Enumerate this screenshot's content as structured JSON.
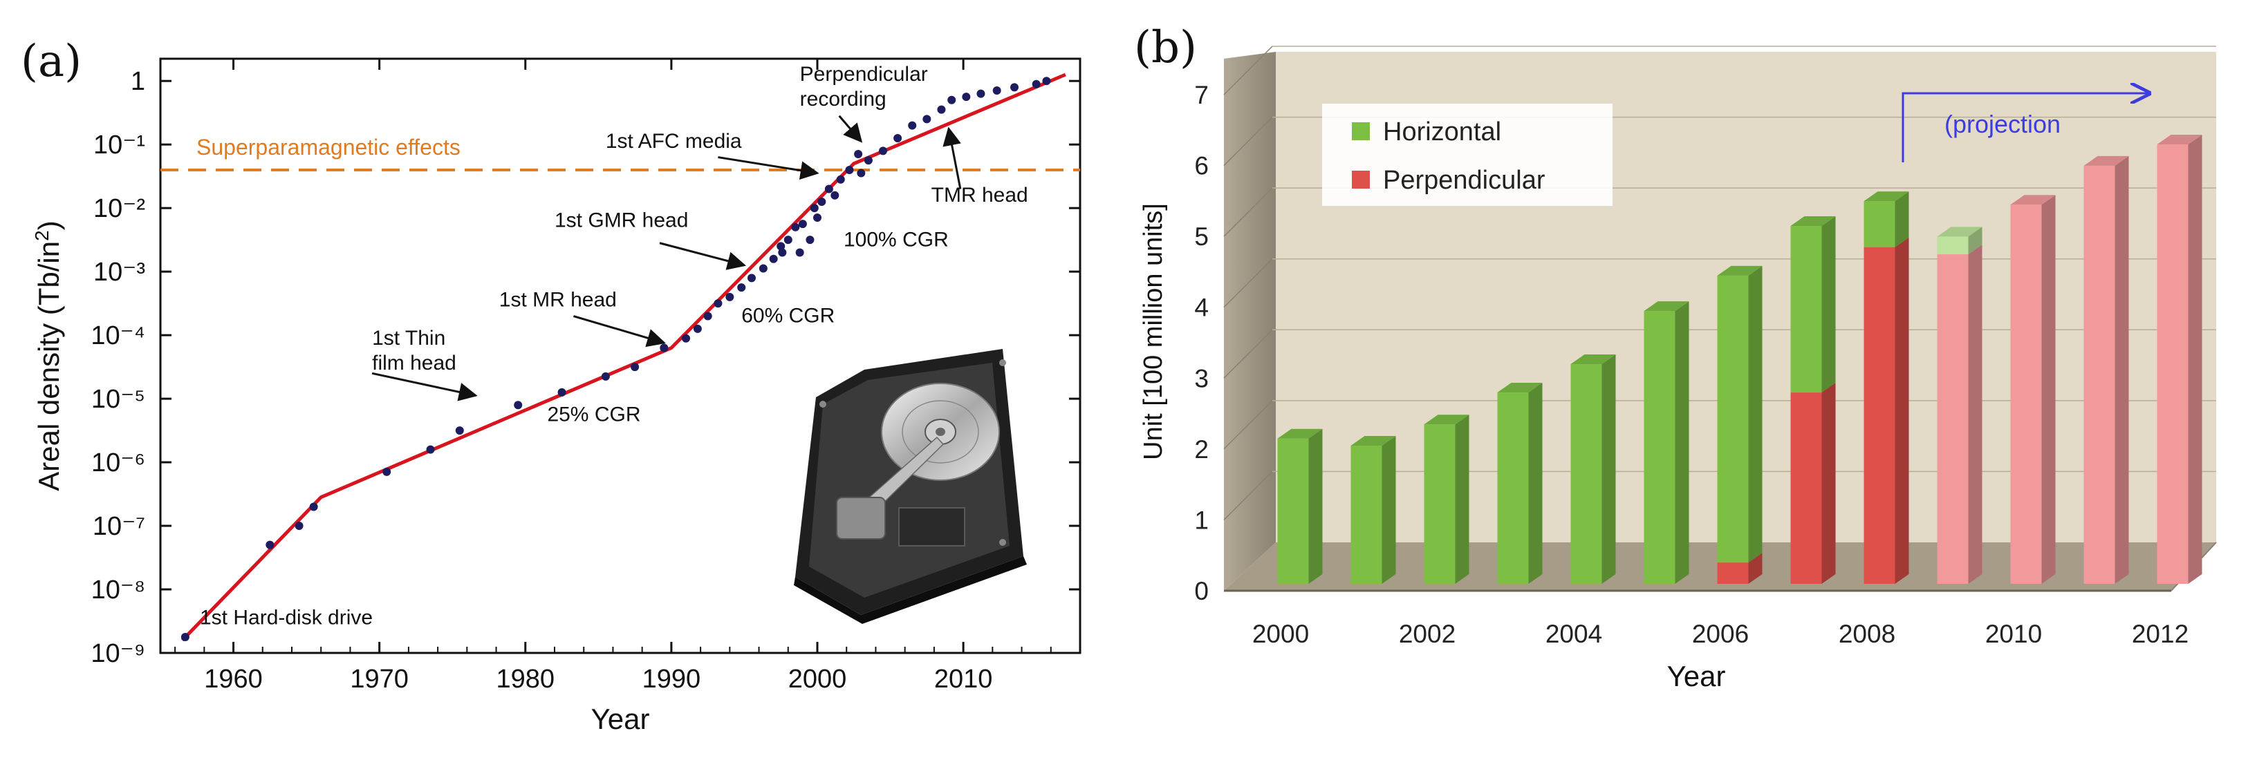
{
  "chart_data": [
    {
      "panel_label": "(a)",
      "type": "scatter",
      "title": "",
      "xlabel": "Year",
      "ylabel": "Areal density (Tb/in²)",
      "yscale": "log",
      "xlim": [
        1955,
        2018
      ],
      "ylim_exp": [
        -9,
        0.35
      ],
      "xticks": [
        1960,
        1970,
        1980,
        1990,
        2000,
        2010
      ],
      "yticks": [
        {
          "exp": 0,
          "label": "1"
        },
        {
          "exp": -1,
          "label": "10⁻¹"
        },
        {
          "exp": -2,
          "label": "10⁻²"
        },
        {
          "exp": -3,
          "label": "10⁻³"
        },
        {
          "exp": -4,
          "label": "10⁻⁴"
        },
        {
          "exp": -5,
          "label": "10⁻⁵"
        },
        {
          "exp": -6,
          "label": "10⁻⁶"
        },
        {
          "exp": -7,
          "label": "10⁻⁷"
        },
        {
          "exp": -8,
          "label": "10⁻⁸"
        },
        {
          "exp": -9,
          "label": "10⁻⁹"
        }
      ],
      "threshold": {
        "label": "Superparamagnetic effects",
        "value_exp": -1.4,
        "color": "#e07b22"
      },
      "trend_color": "#d8141e",
      "point_color": "#1c1c5e",
      "trend": [
        {
          "x": 1956.5,
          "y_exp": -8.8
        },
        {
          "x": 1966,
          "y_exp": -6.55
        },
        {
          "x": 1990,
          "y_exp": -4.2
        },
        {
          "x": 2002.5,
          "y_exp": -1.3
        },
        {
          "x": 2017,
          "y_exp": 0.1
        }
      ],
      "points": [
        {
          "x": 1956.7,
          "y_exp": -8.75
        },
        {
          "x": 1962.5,
          "y_exp": -7.3
        },
        {
          "x": 1964.5,
          "y_exp": -7.0
        },
        {
          "x": 1965.5,
          "y_exp": -6.7
        },
        {
          "x": 1970.5,
          "y_exp": -6.15
        },
        {
          "x": 1973.5,
          "y_exp": -5.8
        },
        {
          "x": 1975.5,
          "y_exp": -5.5
        },
        {
          "x": 1979.5,
          "y_exp": -5.1
        },
        {
          "x": 1982.5,
          "y_exp": -4.9
        },
        {
          "x": 1985.5,
          "y_exp": -4.65
        },
        {
          "x": 1987.5,
          "y_exp": -4.5
        },
        {
          "x": 1989.5,
          "y_exp": -4.2
        },
        {
          "x": 1991,
          "y_exp": -4.05
        },
        {
          "x": 1991.8,
          "y_exp": -3.9
        },
        {
          "x": 1992.5,
          "y_exp": -3.7
        },
        {
          "x": 1993.2,
          "y_exp": -3.5
        },
        {
          "x": 1994,
          "y_exp": -3.4
        },
        {
          "x": 1994.8,
          "y_exp": -3.25
        },
        {
          "x": 1995.5,
          "y_exp": -3.1
        },
        {
          "x": 1996.3,
          "y_exp": -2.95
        },
        {
          "x": 1997,
          "y_exp": -2.8
        },
        {
          "x": 1997.5,
          "y_exp": -2.6
        },
        {
          "x": 1998,
          "y_exp": -2.5
        },
        {
          "x": 1998.5,
          "y_exp": -2.3
        },
        {
          "x": 1999,
          "y_exp": -2.25
        },
        {
          "x": 1999.5,
          "y_exp": -2.5
        },
        {
          "x": 1999.8,
          "y_exp": -2.0
        },
        {
          "x": 2000.3,
          "y_exp": -1.9
        },
        {
          "x": 2000.8,
          "y_exp": -1.7
        },
        {
          "x": 2001.2,
          "y_exp": -1.8
        },
        {
          "x": 2001.6,
          "y_exp": -1.55
        },
        {
          "x": 2002.2,
          "y_exp": -1.4
        },
        {
          "x": 2002.8,
          "y_exp": -1.15
        },
        {
          "x": 2003.5,
          "y_exp": -1.25
        },
        {
          "x": 2004.5,
          "y_exp": -1.1
        },
        {
          "x": 2005.5,
          "y_exp": -0.9
        },
        {
          "x": 2006.5,
          "y_exp": -0.7
        },
        {
          "x": 2007.5,
          "y_exp": -0.6
        },
        {
          "x": 2008.5,
          "y_exp": -0.45
        },
        {
          "x": 2009.2,
          "y_exp": -0.3
        },
        {
          "x": 2010.2,
          "y_exp": -0.25
        },
        {
          "x": 2011.2,
          "y_exp": -0.2
        },
        {
          "x": 2012.3,
          "y_exp": -0.15
        },
        {
          "x": 2013.5,
          "y_exp": -0.1
        },
        {
          "x": 2015,
          "y_exp": -0.05
        },
        {
          "x": 2015.7,
          "y_exp": 0.0
        },
        {
          "x": 1997.6,
          "y_exp": -2.7
        },
        {
          "x": 1998.8,
          "y_exp": -2.7
        },
        {
          "x": 2000.0,
          "y_exp": -2.15
        },
        {
          "x": 2003.0,
          "y_exp": -1.45
        }
      ],
      "annotations": [
        {
          "text": [
            "1st Hard-disk drive"
          ],
          "x": 1957.7,
          "y_exp": -8.55
        },
        {
          "text": [
            "1st Thin",
            "film head"
          ],
          "x": 1969.5,
          "y_exp": -4.15
        },
        {
          "text": [
            "1st MR head"
          ],
          "x": 1978.2,
          "y_exp": -3.55
        },
        {
          "text": [
            "1st GMR head"
          ],
          "x": 1982.0,
          "y_exp": -2.3
        },
        {
          "text": [
            "1st AFC media"
          ],
          "x": 1985.5,
          "y_exp": -1.05
        },
        {
          "text": [
            "Perpendicular",
            "recording"
          ],
          "x": 1998.8,
          "y_exp": 0.0
        },
        {
          "text": [
            "TMR head"
          ],
          "x": 2007.8,
          "y_exp": -1.9
        },
        {
          "text": [
            "25% CGR"
          ],
          "x": 1981.5,
          "y_exp": -5.35
        },
        {
          "text": [
            "60% CGR"
          ],
          "x": 1994.8,
          "y_exp": -3.8
        },
        {
          "text": [
            "100% CGR"
          ],
          "x": 2001.8,
          "y_exp": -2.6
        }
      ],
      "arrows": [
        {
          "from": [
            1969.5,
            -4.6
          ],
          "to": [
            1976.6,
            -4.95
          ]
        },
        {
          "from": [
            1983.3,
            -3.7
          ],
          "to": [
            1989.5,
            -4.12
          ]
        },
        {
          "from": [
            1989.2,
            -2.55
          ],
          "to": [
            1995.0,
            -2.9
          ]
        },
        {
          "from": [
            1993.2,
            -1.2
          ],
          "to": [
            2000.0,
            -1.45
          ]
        },
        {
          "from": [
            2001.5,
            -0.55
          ],
          "to": [
            2003.0,
            -0.95
          ]
        },
        {
          "from": [
            2009.8,
            -1.7
          ],
          "to": [
            2009.0,
            -0.75
          ]
        }
      ]
    },
    {
      "panel_label": "(b)",
      "type": "bar",
      "stacked": true,
      "title": "",
      "xlabel": "Year",
      "ylabel": "Unit [100 million units]",
      "ylim": [
        0,
        7
      ],
      "yticks": [
        0,
        1,
        2,
        3,
        4,
        5,
        6,
        7
      ],
      "categories": [
        2000,
        2001,
        2002,
        2003,
        2004,
        2005,
        2006,
        2007,
        2008,
        2009,
        2010,
        2011,
        2012
      ],
      "xtick_labels": [
        "2000",
        "2002",
        "2004",
        "2006",
        "2008",
        "2010",
        "2012"
      ],
      "xtick_years": [
        2000,
        2002,
        2004,
        2006,
        2008,
        2010,
        2012
      ],
      "series": [
        {
          "name": "Perpendicular",
          "values": [
            0,
            0,
            0,
            0,
            0,
            0,
            0.3,
            2.7,
            4.75,
            4.65,
            5.35,
            5.9,
            6.2
          ],
          "color": "#e0504a"
        },
        {
          "name": "Horizontal",
          "values": [
            2.05,
            1.95,
            2.25,
            2.7,
            3.1,
            3.85,
            4.05,
            2.35,
            0.65,
            0.25,
            0,
            0,
            0
          ],
          "color": "#7cbf44"
        }
      ],
      "projection_from": 2009,
      "projection_label": "(projection",
      "projection_colors": {
        "Perpendicular": "#f2999b",
        "Horizontal": "#bde39c"
      }
    }
  ]
}
